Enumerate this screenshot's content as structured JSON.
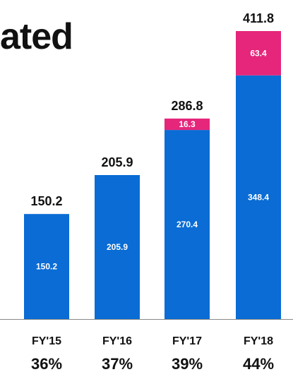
{
  "header": {
    "title_fragment": "ated"
  },
  "colors": {
    "base": "#0a6cd4",
    "increment": "#e5267b",
    "axis": "#888888",
    "text": "#111111"
  },
  "chart_data": {
    "type": "bar",
    "stacked": true,
    "categories": [
      "FY'15",
      "FY'16",
      "FY'17",
      "FY'18"
    ],
    "series": [
      {
        "values": [
          150.2,
          205.9,
          270.4,
          348.4
        ],
        "color": "#0a6cd4"
      },
      {
        "values": [
          0,
          0,
          16.3,
          63.4
        ],
        "color": "#e5267b"
      }
    ],
    "totals": [
      "150.2",
      "205.9",
      "286.8",
      "411.8"
    ],
    "segment_labels": [
      [
        "150.2",
        "205.9",
        "270.4",
        "348.4"
      ],
      [
        "",
        "",
        "16.3",
        "63.4"
      ]
    ],
    "percentages": [
      "36%",
      "37%",
      "39%",
      "44%"
    ],
    "ylim": [
      0,
      411.8
    ],
    "grid": false,
    "legend": "none"
  }
}
